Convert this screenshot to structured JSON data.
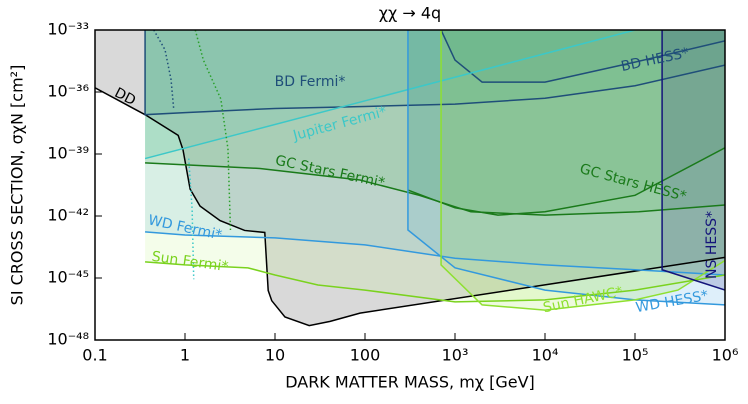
{
  "chart_data": {
    "type": "line",
    "title": "χχ → 4q",
    "xlabel": "DARK MATTER MASS, mχ [GeV]",
    "ylabel": "SI CROSS SECTION, σχN  [cm²]",
    "xscale": "log",
    "yscale": "log",
    "xlim": [
      0.1,
      1000000
    ],
    "ylim": [
      1e-48,
      1e-33
    ],
    "xticks": [
      0.1,
      1,
      10,
      100,
      {
        "value": 1000,
        "label": "10³"
      },
      {
        "value": 10000,
        "label": "10⁴"
      },
      {
        "value": 100000,
        "label": "10⁵"
      },
      {
        "value": 1000000,
        "label": "10⁶"
      }
    ],
    "yticks": [
      {
        "value": 1e-48,
        "label": "10⁻⁴⁸"
      },
      {
        "value": 1e-45,
        "label": "10⁻⁴⁵"
      },
      {
        "value": 1e-42,
        "label": "10⁻⁴²"
      },
      {
        "value": 1e-39,
        "label": "10⁻³⁹"
      },
      {
        "value": 1e-36,
        "label": "10⁻³⁶"
      },
      {
        "value": 1e-33,
        "label": "10⁻³³"
      }
    ],
    "series": [
      {
        "name": "DD",
        "color": "#000000",
        "fill": "#d9d9d9",
        "x": [
          0.1,
          0.36,
          0.84,
          0.95,
          1.14,
          1.47,
          2.45,
          4.6,
          7.7,
          8.4,
          9.2,
          12.9,
          24,
          41,
          88,
          1000000
        ],
        "values": [
          1.6e-36,
          8e-38,
          8e-39,
          1.6e-39,
          2e-41,
          3e-42,
          6e-43,
          2e-43,
          1.6e-43,
          2.5e-46,
          8e-47,
          1.3e-47,
          5e-48,
          8e-48,
          2e-47,
          1e-44
        ]
      },
      {
        "name": "BD Fermi*",
        "color": "#1f4e79",
        "fill": "#2e8a8a",
        "x": [
          0.36,
          0.36,
          1,
          10,
          100,
          1000,
          10000,
          100000,
          1000000
        ],
        "values": [
          1e-33,
          8e-38,
          1e-37,
          1.6e-37,
          2e-37,
          2.6e-37,
          5e-37,
          2e-36,
          2e-35
        ]
      },
      {
        "name": "BD HESS*",
        "color": "#1f4e79",
        "fill": "#1f4e79",
        "x": [
          700,
          1000,
          2000,
          10000,
          100000,
          1000000
        ],
        "values": [
          1e-33,
          3.5e-35,
          3e-36,
          3e-36,
          2.8e-35,
          3e-34
        ]
      },
      {
        "name": "Jupiter Fermi*",
        "color": "#3cc8c8",
        "fill": "#3cc8c8",
        "x": [
          0.36,
          100000
        ],
        "values": [
          6e-40,
          1e-33
        ]
      },
      {
        "name": "GC Stars Fermi*",
        "color": "#1a7a1a",
        "fill": "#2aa02a",
        "x": [
          0.36,
          6.8,
          88,
          400,
          1500,
          10000,
          110000,
          1000000
        ],
        "values": [
          3.7e-40,
          2e-40,
          5.5e-41,
          1e-41,
          1.6e-42,
          1.1e-42,
          1.6e-42,
          3.4e-42
        ]
      },
      {
        "name": "GC Stars HESS*",
        "color": "#1a7a1a",
        "fill": "#1a7a1a",
        "x": [
          300,
          1000,
          3000,
          10000,
          100000,
          1000000
        ],
        "values": [
          1.8e-41,
          2.5e-42,
          1.1e-42,
          1.6e-42,
          1e-41,
          2e-39
        ]
      },
      {
        "name": "WD Fermi*",
        "color": "#3399dd",
        "fill": "#3399dd",
        "x": [
          0.36,
          1,
          10,
          100,
          1000,
          10000,
          100000,
          1000000
        ],
        "values": [
          1.7e-43,
          1.2e-43,
          8.7e-44,
          4e-44,
          9e-45,
          4.3e-45,
          2.5e-45,
          1.4e-45
        ]
      },
      {
        "name": "WD HESS*",
        "color": "#3399dd",
        "fill": "#3399dd",
        "x": [
          300,
          300,
          1000,
          10000,
          100000,
          1000000
        ],
        "values": [
          1e-33,
          2.1e-43,
          3.1e-45,
          2.6e-46,
          8.7e-47,
          5e-47
        ]
      },
      {
        "name": "Sun Fermi*",
        "color": "#7ad21e",
        "fill": "#b8f07a",
        "x": [
          0.36,
          1,
          5,
          10,
          30,
          100,
          1000,
          10000,
          100000,
          1000000
        ],
        "values": [
          6e-45,
          4.3e-45,
          3.1e-45,
          1.4e-45,
          4.6e-46,
          2.6e-46,
          7e-47,
          8.7e-47,
          2.6e-46,
          1.4e-45
        ]
      },
      {
        "name": "Sun HAWC*",
        "color": "#8ee030",
        "fill": "#8ee030",
        "x": [
          700,
          700,
          2000,
          10000,
          100000,
          300000,
          1000000
        ],
        "values": [
          1e-33,
          4.3e-45,
          5e-47,
          2.8e-47,
          8.7e-47,
          2.6e-46,
          7e-45
        ]
      },
      {
        "name": "NS HESS*",
        "color": "#14147a",
        "fill": "#14147a",
        "x": [
          200000,
          200000,
          1000000
        ],
        "values": [
          1e-33,
          2.5e-45,
          2.6e-46
        ]
      },
      {
        "color": "#1f4e79",
        "dash": "dotted",
        "x": [
          0.45,
          0.6,
          0.7,
          0.75
        ],
        "values": [
          1e-33,
          1.1e-34,
          3.9e-36,
          1.4e-37
        ]
      },
      {
        "color": "#3cc8c8",
        "dash": "dotted",
        "x": [
          1.1,
          1.2,
          1.25
        ],
        "values": [
          6e-40,
          2.1e-42,
          8.7e-46
        ]
      },
      {
        "color": "#2aa02a",
        "dash": "dotted",
        "x": [
          1.3,
          1.6,
          2.5,
          3,
          3.2
        ],
        "values": [
          1e-33,
          3.5e-35,
          4.6e-37,
          1.8e-39,
          2.1e-43
        ]
      }
    ]
  }
}
